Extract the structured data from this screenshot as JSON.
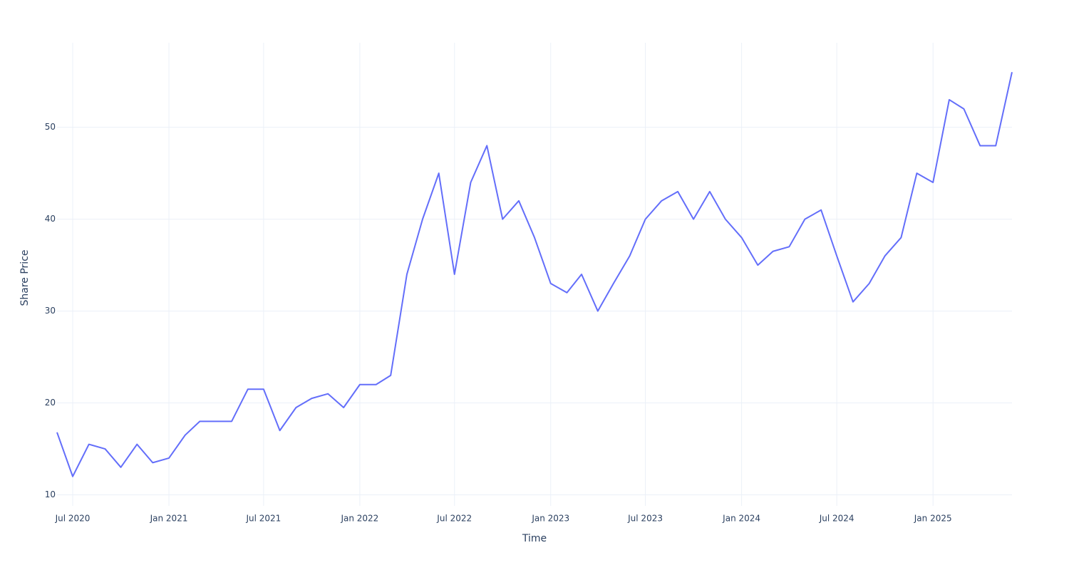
{
  "chart_data": {
    "type": "line",
    "x_label": "Time",
    "y_label": "Share Price",
    "x": [
      "2020-06",
      "2020-07",
      "2020-08",
      "2020-09",
      "2020-10",
      "2020-11",
      "2020-12",
      "2021-01",
      "2021-02",
      "2021-03",
      "2021-04",
      "2021-05",
      "2021-06",
      "2021-07",
      "2021-08",
      "2021-09",
      "2021-10",
      "2021-11",
      "2021-12",
      "2022-01",
      "2022-02",
      "2022-03",
      "2022-04",
      "2022-05",
      "2022-06",
      "2022-07",
      "2022-08",
      "2022-09",
      "2022-10",
      "2022-11",
      "2022-12",
      "2023-01",
      "2023-02",
      "2023-03",
      "2023-04",
      "2023-05",
      "2023-06",
      "2023-07",
      "2023-08",
      "2023-09",
      "2023-10",
      "2023-11",
      "2023-12",
      "2024-01",
      "2024-02",
      "2024-03",
      "2024-04",
      "2024-05",
      "2024-06",
      "2024-07",
      "2024-08",
      "2024-09",
      "2024-10",
      "2024-11",
      "2024-12",
      "2025-01",
      "2025-02",
      "2025-03",
      "2025-04",
      "2025-05",
      "2025-06"
    ],
    "series": [
      {
        "name": "Share Price",
        "color": "#636efa",
        "values": [
          16.8,
          12,
          15.5,
          15,
          13,
          15.5,
          13.5,
          14,
          16.5,
          18,
          18,
          18,
          21.5,
          21.5,
          17,
          19.5,
          20.5,
          21,
          19.5,
          22,
          22,
          23,
          34,
          40,
          45,
          34,
          44,
          48,
          40,
          42,
          38,
          33,
          32,
          34,
          30,
          33,
          36,
          40,
          42,
          43,
          40,
          43,
          40,
          38,
          35,
          36.5,
          37,
          40,
          41,
          36,
          31,
          33,
          36,
          38,
          45,
          44,
          53,
          52,
          48,
          48,
          56
        ]
      }
    ],
    "xlim": [
      "2020-06",
      "2025-06"
    ],
    "xticks": [
      {
        "value": "2020-07",
        "label": "Jul 2020"
      },
      {
        "value": "2021-01",
        "label": "Jan 2021"
      },
      {
        "value": "2021-07",
        "label": "Jul 2021"
      },
      {
        "value": "2022-01",
        "label": "Jan 2022"
      },
      {
        "value": "2022-07",
        "label": "Jul 2022"
      },
      {
        "value": "2023-01",
        "label": "Jan 2023"
      },
      {
        "value": "2023-07",
        "label": "Jul 2023"
      },
      {
        "value": "2024-01",
        "label": "Jan 2024"
      },
      {
        "value": "2024-07",
        "label": "Jul 2024"
      },
      {
        "value": "2025-01",
        "label": "Jan 2025"
      }
    ],
    "ylim": [
      8.8,
      59.2
    ],
    "yticks": [
      10,
      20,
      30,
      40,
      50
    ],
    "grid": true
  }
}
